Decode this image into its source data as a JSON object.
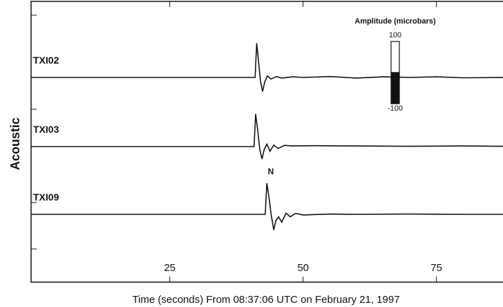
{
  "chart_data": {
    "type": "line",
    "xlabel": "Time (seconds) From 08:37:06 UTC on February 21, 1997",
    "ylabel": "Acoustic",
    "xlim": [
      -1,
      88
    ],
    "xticks": [
      25,
      50,
      75
    ],
    "annotation": "N",
    "amplitude_scale": {
      "label": "Amplitude (microbars)",
      "ticks": [
        100,
        -100
      ]
    },
    "series": [
      {
        "name": "TXI02",
        "color": "#111111",
        "x": [
          -1,
          41,
          41.3,
          41.6,
          42,
          42.4,
          42.8,
          43.3,
          44,
          45,
          46,
          48,
          50,
          55,
          60,
          65,
          70,
          75,
          80,
          88
        ],
        "values": [
          0,
          0,
          110,
          60,
          -10,
          -45,
          -15,
          5,
          -5,
          3,
          -2,
          2,
          0,
          3,
          -2,
          2,
          0,
          2,
          -1,
          0
        ]
      },
      {
        "name": "TXI03",
        "color": "#111111",
        "x": [
          -1,
          40.8,
          41.1,
          41.5,
          41.9,
          42.3,
          42.7,
          43.2,
          43.8,
          44.5,
          45.3,
          46.5,
          48,
          52,
          60,
          70,
          80,
          88
        ],
        "values": [
          0,
          0,
          105,
          50,
          -10,
          -40,
          -10,
          8,
          -15,
          5,
          -6,
          4,
          2,
          3,
          2,
          1,
          2,
          1
        ]
      },
      {
        "name": "TXI09",
        "color": "#111111",
        "x": [
          -1,
          42.9,
          43.2,
          43.6,
          44,
          44.5,
          44.9,
          45.4,
          46,
          46.8,
          47.6,
          48.6,
          50,
          55,
          60,
          70,
          80,
          88
        ],
        "values": [
          0,
          0,
          100,
          55,
          0,
          -50,
          -20,
          -8,
          -25,
          4,
          -8,
          3,
          -2,
          1,
          0,
          1,
          0,
          0
        ]
      }
    ]
  }
}
